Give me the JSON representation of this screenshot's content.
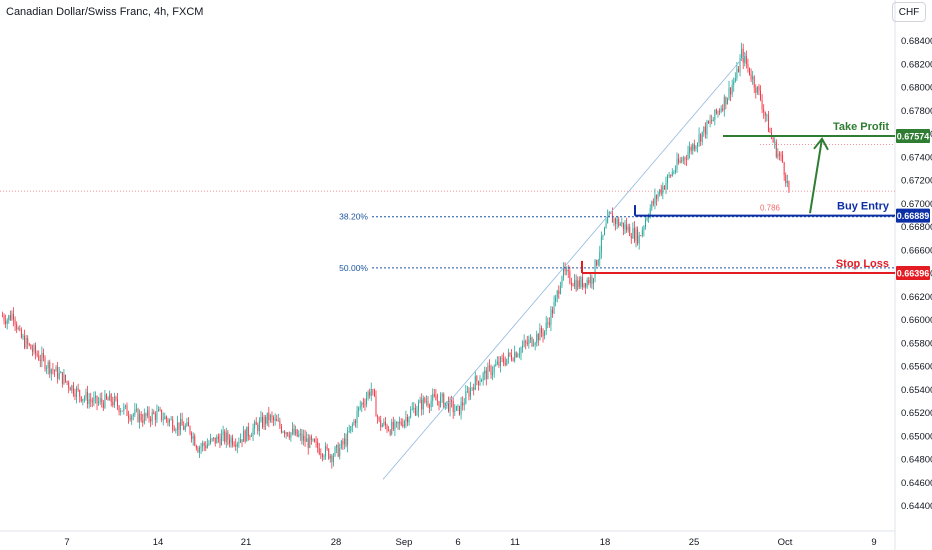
{
  "title": "Canadian Dollar/Swiss Franc, 4h, FXCM",
  "currency_button": "CHF",
  "colors": {
    "up": "#26a69a",
    "down": "#f23645",
    "take_profit": "#2e7d32",
    "buy_entry": "#0d2fa6",
    "stop_loss": "#e31b23",
    "fib": "#1e56a0",
    "trendline": "#90b8de"
  },
  "chart_data": {
    "type": "candlestick",
    "y_ticks": [
      "0.68400",
      "0.68200",
      "0.68000",
      "0.67800",
      "0.67600",
      "0.67400",
      "0.67200",
      "0.67000",
      "0.66800",
      "0.66600",
      "0.66400",
      "0.66200",
      "0.66000",
      "0.65800",
      "0.65600",
      "0.65400",
      "0.65200",
      "0.65000",
      "0.64800",
      "0.64600",
      "0.64400"
    ],
    "ylim": [
      0.6435,
      0.6847
    ],
    "x_ticks": [
      "7",
      "14",
      "21",
      "28",
      "Sep",
      "6",
      "11",
      "18",
      "25",
      "Oct",
      "9"
    ],
    "levels": [
      {
        "name": "Take Profit",
        "value": 0.67574,
        "label": "0.67574"
      },
      {
        "name": "Buy Entry",
        "value": 0.66889,
        "label": "0.66889"
      },
      {
        "name": "Stop Loss",
        "value": 0.66396,
        "label": "0.66396"
      }
    ],
    "fib_levels": [
      {
        "label": "38.20%",
        "value": 0.6688
      },
      {
        "label": "50.00%",
        "value": 0.6644
      }
    ],
    "fib_note": "0.786",
    "current_price": 0.671,
    "anchors": [
      [
        0,
        0.6603
      ],
      [
        4,
        0.66
      ],
      [
        8,
        0.6605
      ],
      [
        12,
        0.6585
      ],
      [
        20,
        0.6573
      ],
      [
        30,
        0.656
      ],
      [
        40,
        0.6548
      ],
      [
        50,
        0.6535
      ],
      [
        60,
        0.6528
      ],
      [
        70,
        0.653
      ],
      [
        80,
        0.652
      ],
      [
        90,
        0.6515
      ],
      [
        100,
        0.6518
      ],
      [
        110,
        0.651
      ],
      [
        120,
        0.6505
      ],
      [
        125,
        0.649
      ],
      [
        130,
        0.6492
      ],
      [
        140,
        0.6498
      ],
      [
        150,
        0.6496
      ],
      [
        160,
        0.6505
      ],
      [
        170,
        0.6515
      ],
      [
        180,
        0.6505
      ],
      [
        190,
        0.6498
      ],
      [
        200,
        0.649
      ],
      [
        210,
        0.6483
      ],
      [
        215,
        0.6488
      ],
      [
        220,
        0.6498
      ],
      [
        228,
        0.6525
      ],
      [
        235,
        0.654
      ],
      [
        240,
        0.651
      ],
      [
        250,
        0.6505
      ],
      [
        260,
        0.652
      ],
      [
        270,
        0.653
      ],
      [
        280,
        0.653
      ],
      [
        290,
        0.652
      ],
      [
        300,
        0.6545
      ],
      [
        315,
        0.656
      ],
      [
        330,
        0.6575
      ],
      [
        345,
        0.659
      ],
      [
        352,
        0.6615
      ],
      [
        356,
        0.664
      ],
      [
        366,
        0.663
      ],
      [
        375,
        0.6635
      ],
      [
        382,
        0.667
      ],
      [
        386,
        0.6688
      ],
      [
        395,
        0.668
      ],
      [
        405,
        0.667
      ],
      [
        410,
        0.669
      ],
      [
        418,
        0.671
      ],
      [
        428,
        0.673
      ],
      [
        435,
        0.6742
      ],
      [
        445,
        0.676
      ],
      [
        452,
        0.6772
      ],
      [
        460,
        0.679
      ],
      [
        467,
        0.681
      ],
      [
        470,
        0.6828
      ],
      [
        476,
        0.681
      ],
      [
        482,
        0.679
      ],
      [
        488,
        0.676
      ],
      [
        492,
        0.6745
      ],
      [
        496,
        0.6735
      ],
      [
        500,
        0.671
      ]
    ],
    "n_candles": 500
  }
}
